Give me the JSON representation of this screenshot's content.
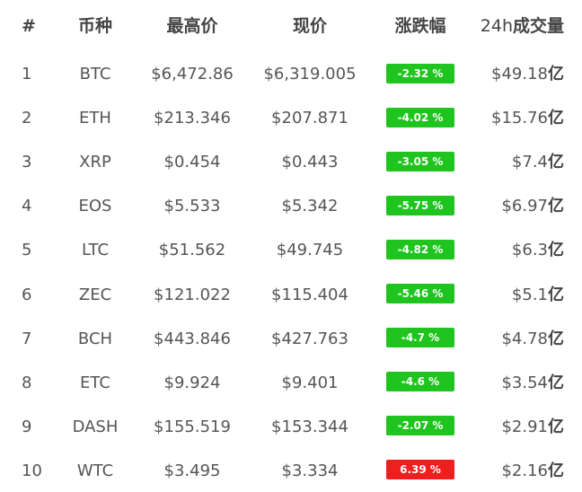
{
  "header": {
    "rank": "#",
    "coin": "币种",
    "high": "最高价",
    "now": "现价",
    "change": "涨跌幅",
    "volume_prefix": "24h",
    "volume_suffix": "成交量"
  },
  "rows": [
    {
      "rank": "1",
      "coin": "BTC",
      "high": "$6,472.86",
      "now": "$6,319.005",
      "change": "-2.32 %",
      "direction": "down",
      "volume": "$49.18",
      "unit": "亿"
    },
    {
      "rank": "2",
      "coin": "ETH",
      "high": "$213.346",
      "now": "$207.871",
      "change": "-4.02 %",
      "direction": "down",
      "volume": "$15.76",
      "unit": "亿"
    },
    {
      "rank": "3",
      "coin": "XRP",
      "high": "$0.454",
      "now": "$0.443",
      "change": "-3.05 %",
      "direction": "down",
      "volume": "$7.4",
      "unit": "亿"
    },
    {
      "rank": "4",
      "coin": "EOS",
      "high": "$5.533",
      "now": "$5.342",
      "change": "-5.75 %",
      "direction": "down",
      "volume": "$6.97",
      "unit": "亿"
    },
    {
      "rank": "5",
      "coin": "LTC",
      "high": "$51.562",
      "now": "$49.745",
      "change": "-4.82 %",
      "direction": "down",
      "volume": "$6.3",
      "unit": "亿"
    },
    {
      "rank": "6",
      "coin": "ZEC",
      "high": "$121.022",
      "now": "$115.404",
      "change": "-5.46 %",
      "direction": "down",
      "volume": "$5.1",
      "unit": "亿"
    },
    {
      "rank": "7",
      "coin": "BCH",
      "high": "$443.846",
      "now": "$427.763",
      "change": "-4.7 %",
      "direction": "down",
      "volume": "$4.78",
      "unit": "亿"
    },
    {
      "rank": "8",
      "coin": "ETC",
      "high": "$9.924",
      "now": "$9.401",
      "change": "-4.6 %",
      "direction": "down",
      "volume": "$3.54",
      "unit": "亿"
    },
    {
      "rank": "9",
      "coin": "DASH",
      "high": "$155.519",
      "now": "$153.344",
      "change": "-2.07 %",
      "direction": "down",
      "volume": "$2.91",
      "unit": "亿"
    },
    {
      "rank": "10",
      "coin": "WTC",
      "high": "$3.495",
      "now": "$3.334",
      "change": "6.39 %",
      "direction": "up",
      "volume": "$2.16",
      "unit": "亿"
    }
  ],
  "colors": {
    "down": "#1fc41f",
    "up": "#f01f1f",
    "text": "#555555"
  }
}
